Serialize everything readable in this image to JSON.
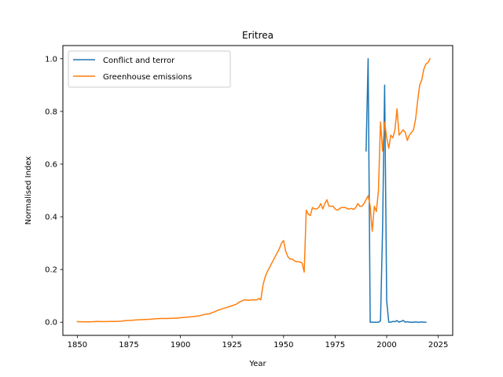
{
  "chart_data": {
    "type": "line",
    "title": "Eritrea",
    "xlabel": "Year",
    "ylabel": "Normalised Index",
    "xlim": [
      1843,
      2032
    ],
    "ylim": [
      -0.05,
      1.05
    ],
    "xticks": [
      1850,
      1875,
      1900,
      1925,
      1950,
      1975,
      2000,
      2025
    ],
    "yticks": [
      0.0,
      0.2,
      0.4,
      0.6,
      0.8,
      1.0
    ],
    "grid": false,
    "legend_position": "top-left",
    "series": [
      {
        "name": "Conflict and terror",
        "color": "#1f77b4",
        "x": [
          1990,
          1991,
          1992,
          1993,
          1994,
          1995,
          1996,
          1997,
          1998,
          1999,
          2000,
          2001,
          2002,
          2003,
          2004,
          2005,
          2006,
          2007,
          2008,
          2009,
          2010,
          2011,
          2012,
          2013,
          2014,
          2015,
          2016,
          2017,
          2018,
          2019
        ],
        "y": [
          0.65,
          1.0,
          0.0,
          0.0,
          0.0,
          0.0,
          0.0,
          0.005,
          0.35,
          0.9,
          0.08,
          0.0,
          0.0,
          0.003,
          0.002,
          0.006,
          0.0,
          0.003,
          0.007,
          0.0,
          0.002,
          0.0,
          0.0,
          0.0,
          0.001,
          0.0,
          0.0,
          0.001,
          0.0,
          0.0
        ]
      },
      {
        "name": "Greenhouse emissions",
        "color": "#ff7f0e",
        "x": [
          1850,
          1855,
          1858,
          1860,
          1863,
          1866,
          1869,
          1872,
          1873,
          1876,
          1879,
          1882,
          1885,
          1888,
          1890,
          1893,
          1896,
          1899,
          1900,
          1903,
          1906,
          1909,
          1912,
          1914,
          1916,
          1918,
          1920,
          1922,
          1924,
          1927,
          1929,
          1931,
          1933,
          1935,
          1937,
          1938,
          1939,
          1940,
          1941,
          1942,
          1944,
          1946,
          1948,
          1949,
          1950,
          1951,
          1952,
          1953,
          1954,
          1955,
          1956,
          1957,
          1958,
          1959,
          1960,
          1961,
          1962,
          1963,
          1964,
          1965,
          1966,
          1967,
          1968,
          1969,
          1970,
          1971,
          1972,
          1973,
          1974,
          1975,
          1976,
          1977,
          1978,
          1979,
          1980,
          1981,
          1982,
          1983,
          1984,
          1985,
          1986,
          1987,
          1988,
          1989,
          1990,
          1991,
          1992,
          1993,
          1994,
          1995,
          1996,
          1997,
          1998,
          1999,
          2000,
          2001,
          2002,
          2003,
          2004,
          2005,
          2006,
          2007,
          2008,
          2009,
          2010,
          2011,
          2012,
          2013,
          2014,
          2015,
          2016,
          2017,
          2018,
          2019,
          2020,
          2021
        ],
        "y": [
          0.002,
          0.001,
          0.002,
          0.003,
          0.002,
          0.003,
          0.003,
          0.004,
          0.006,
          0.007,
          0.009,
          0.01,
          0.011,
          0.013,
          0.014,
          0.014,
          0.015,
          0.016,
          0.017,
          0.019,
          0.021,
          0.024,
          0.03,
          0.032,
          0.038,
          0.045,
          0.05,
          0.055,
          0.06,
          0.068,
          0.078,
          0.085,
          0.083,
          0.085,
          0.085,
          0.09,
          0.085,
          0.14,
          0.17,
          0.19,
          0.22,
          0.25,
          0.28,
          0.3,
          0.31,
          0.27,
          0.25,
          0.24,
          0.24,
          0.235,
          0.23,
          0.23,
          0.228,
          0.225,
          0.19,
          0.425,
          0.41,
          0.405,
          0.435,
          0.43,
          0.43,
          0.435,
          0.45,
          0.43,
          0.45,
          0.465,
          0.44,
          0.44,
          0.44,
          0.43,
          0.425,
          0.43,
          0.435,
          0.435,
          0.435,
          0.43,
          0.43,
          0.432,
          0.428,
          0.435,
          0.45,
          0.44,
          0.44,
          0.45,
          0.465,
          0.48,
          0.44,
          0.345,
          0.44,
          0.42,
          0.5,
          0.76,
          0.65,
          0.76,
          0.7,
          0.66,
          0.71,
          0.7,
          0.73,
          0.81,
          0.71,
          0.72,
          0.73,
          0.72,
          0.69,
          0.71,
          0.72,
          0.73,
          0.77,
          0.84,
          0.9,
          0.92,
          0.96,
          0.98,
          0.985,
          1.0
        ]
      }
    ]
  }
}
